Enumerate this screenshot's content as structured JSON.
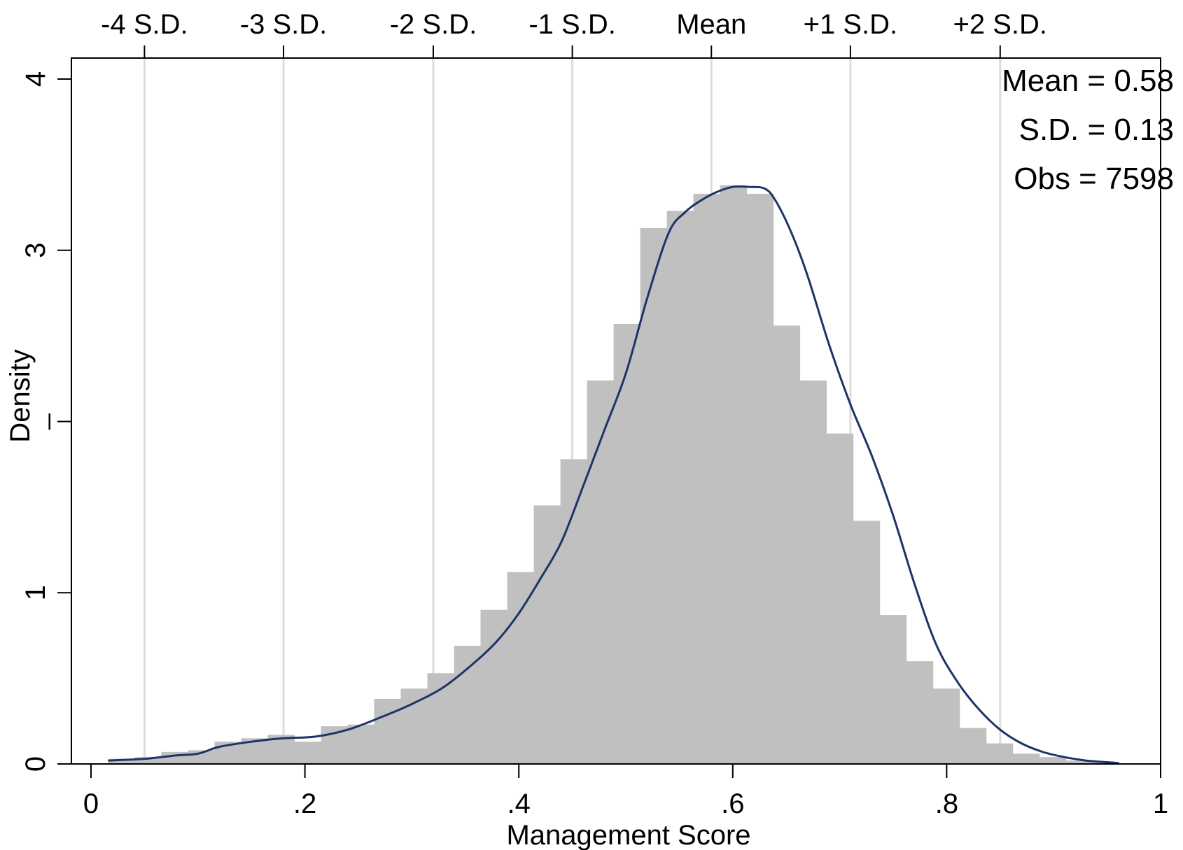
{
  "chart_data": {
    "type": "bar",
    "subtype": "histogram-with-kernel-density",
    "xlabel": "Management Score",
    "ylabel": "Density",
    "xlim": [
      0,
      1
    ],
    "ylim": [
      0,
      4
    ],
    "x_ticks": [
      {
        "value": 0,
        "label": "0"
      },
      {
        "value": 0.2,
        "label": ".2"
      },
      {
        "value": 0.4,
        "label": ".4"
      },
      {
        "value": 0.6,
        "label": ".6"
      },
      {
        "value": 0.8,
        "label": ".8"
      },
      {
        "value": 1,
        "label": "1"
      }
    ],
    "y_ticks": [
      {
        "value": 0,
        "label": "0"
      },
      {
        "value": 1,
        "label": "1"
      },
      {
        "value": 2,
        "label": "_"
      },
      {
        "value": 3,
        "label": "3"
      },
      {
        "value": 4,
        "label": "4"
      }
    ],
    "top_axis_reference_lines": [
      {
        "value": 0.05,
        "label": "-4 S.D."
      },
      {
        "value": 0.18,
        "label": "-3 S.D."
      },
      {
        "value": 0.32,
        "label": "-2 S.D."
      },
      {
        "value": 0.45,
        "label": "-1 S.D."
      },
      {
        "value": 0.58,
        "label": "Mean"
      },
      {
        "value": 0.71,
        "label": "+1 S.D."
      },
      {
        "value": 0.85,
        "label": "+2 S.D."
      }
    ],
    "stats": [
      "Mean = 0.58",
      "S.D. = 0.13",
      "Obs = 7598"
    ],
    "bin_edges": [
      0.016,
      0.0409,
      0.0657,
      0.0906,
      0.1155,
      0.1404,
      0.1652,
      0.1901,
      0.215,
      0.2399,
      0.2647,
      0.2896,
      0.3145,
      0.3394,
      0.3642,
      0.3891,
      0.414,
      0.4389,
      0.4637,
      0.4886,
      0.5135,
      0.5384,
      0.5632,
      0.5881,
      0.613,
      0.6379,
      0.6627,
      0.6876,
      0.7125,
      0.7374,
      0.7622,
      0.7871,
      0.812,
      0.8369,
      0.8617,
      0.8866,
      0.9115,
      0.9364,
      0.9612
    ],
    "bin_densities": [
      0.03,
      0.04,
      0.07,
      0.08,
      0.13,
      0.15,
      0.17,
      0.13,
      0.22,
      0.23,
      0.38,
      0.44,
      0.53,
      0.69,
      0.9,
      1.12,
      1.51,
      1.78,
      2.24,
      2.57,
      3.13,
      3.23,
      3.33,
      3.38,
      3.33,
      2.56,
      2.24,
      1.93,
      1.42,
      0.87,
      0.6,
      0.44,
      0.21,
      0.12,
      0.06,
      0.04,
      0.02,
      0.01
    ],
    "kde": {
      "x": [
        0.016,
        0.05,
        0.08,
        0.1,
        0.12,
        0.15,
        0.18,
        0.21,
        0.24,
        0.27,
        0.3,
        0.33,
        0.36,
        0.38,
        0.4,
        0.42,
        0.44,
        0.46,
        0.48,
        0.5,
        0.52,
        0.54,
        0.555,
        0.57,
        0.585,
        0.6,
        0.615,
        0.63,
        0.64,
        0.655,
        0.67,
        0.69,
        0.71,
        0.73,
        0.75,
        0.77,
        0.79,
        0.81,
        0.83,
        0.85,
        0.87,
        0.89,
        0.91,
        0.93,
        0.95,
        0.961
      ],
      "y": [
        0.02,
        0.03,
        0.05,
        0.06,
        0.1,
        0.13,
        0.15,
        0.16,
        0.2,
        0.27,
        0.35,
        0.45,
        0.6,
        0.72,
        0.88,
        1.08,
        1.3,
        1.62,
        1.95,
        2.28,
        2.72,
        3.1,
        3.22,
        3.29,
        3.34,
        3.37,
        3.37,
        3.36,
        3.29,
        3.1,
        2.85,
        2.45,
        2.1,
        1.8,
        1.45,
        1.05,
        0.7,
        0.48,
        0.32,
        0.2,
        0.12,
        0.07,
        0.04,
        0.02,
        0.01,
        0.005
      ]
    },
    "colors": {
      "bars": "#c0c0c0",
      "density_line": "#1c3467",
      "reference_lines": "#dcdcdc",
      "axes": "#000000"
    },
    "grid": false,
    "legend": "none"
  }
}
